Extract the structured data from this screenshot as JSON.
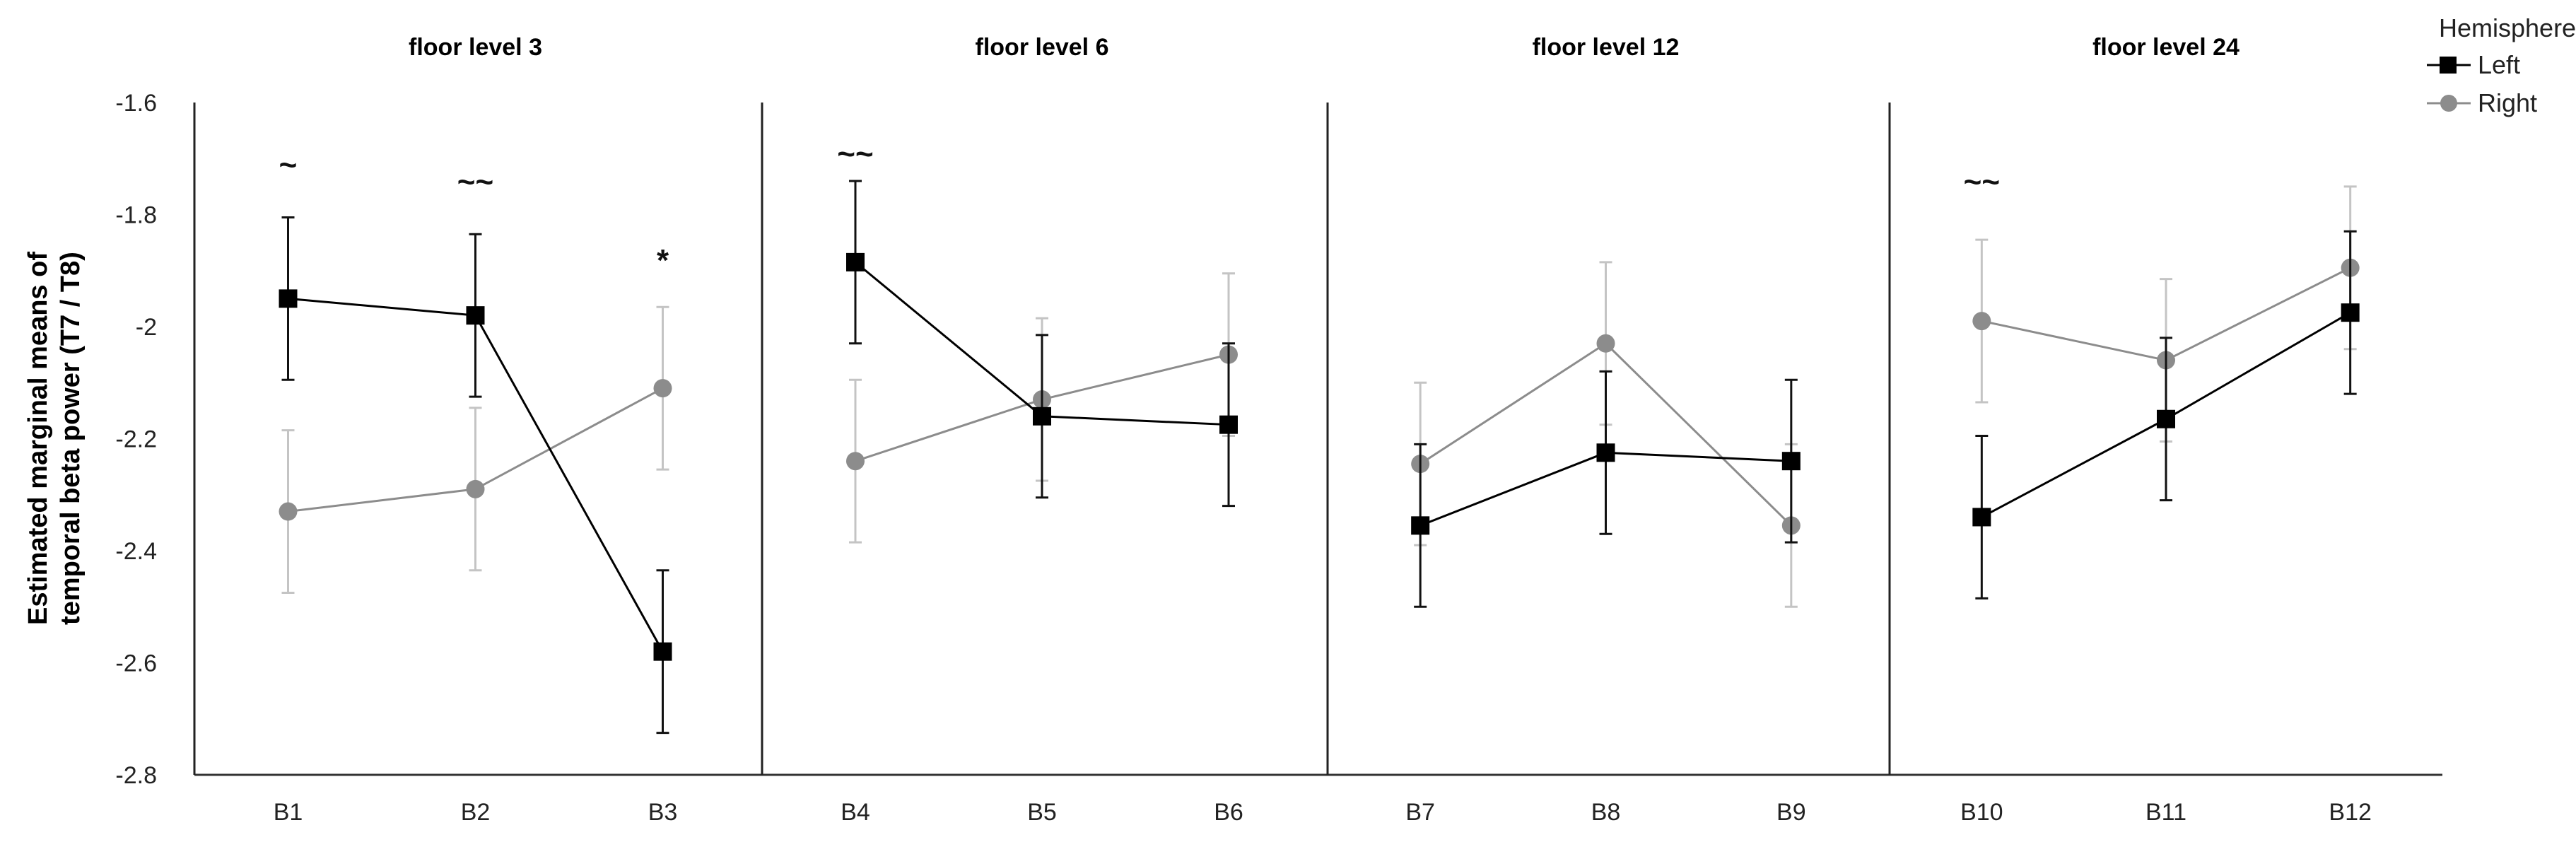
{
  "chart_data": {
    "type": "line",
    "ylabel_lines": [
      "Estimated marginal means of",
      "temporal beta power (T7 / T8)"
    ],
    "ylim": [
      -2.8,
      -1.6
    ],
    "yticks": [
      -1.6,
      -1.8,
      -2,
      -2.2,
      -2.4,
      -2.6,
      -2.8
    ],
    "ytick_labels": [
      "-1.6",
      "-1.8",
      "-2",
      "-2.2",
      "-2.4",
      "-2.6",
      "-2.8"
    ],
    "legend": {
      "title": "Hemisphere",
      "position": "top-right",
      "entries": [
        {
          "name": "Left",
          "marker": "square",
          "color": "#000000"
        },
        {
          "name": "Right",
          "marker": "circle",
          "color": "#8c8c8c"
        }
      ]
    },
    "panels": [
      {
        "title": "floor level 3",
        "categories": [
          "B1",
          "B2",
          "B3"
        ],
        "series": [
          {
            "name": "Left",
            "values": [
              -1.95,
              -1.98,
              -2.58
            ],
            "errors": [
              0.145,
              0.145,
              0.145
            ]
          },
          {
            "name": "Right",
            "values": [
              -2.33,
              -2.29,
              -2.11
            ],
            "errors": [
              0.145,
              0.145,
              0.145
            ]
          }
        ],
        "annotations": [
          {
            "category": "B1",
            "text": "~",
            "value": -1.71
          },
          {
            "category": "B2",
            "text": "~~",
            "value": -1.74
          },
          {
            "category": "B3",
            "text": "*",
            "value": -1.88
          }
        ]
      },
      {
        "title": "floor level 6",
        "categories": [
          "B4",
          "B5",
          "B6"
        ],
        "series": [
          {
            "name": "Left",
            "values": [
              -1.885,
              -2.16,
              -2.175
            ],
            "errors": [
              0.145,
              0.145,
              0.145
            ]
          },
          {
            "name": "Right",
            "values": [
              -2.24,
              -2.13,
              -2.05
            ],
            "errors": [
              0.145,
              0.145,
              0.145
            ]
          }
        ],
        "annotations": [
          {
            "category": "B4",
            "text": "~~",
            "value": -1.69
          }
        ]
      },
      {
        "title": "floor level 12",
        "categories": [
          "B7",
          "B8",
          "B9"
        ],
        "series": [
          {
            "name": "Left",
            "values": [
              -2.355,
              -2.225,
              -2.24
            ],
            "errors": [
              0.145,
              0.145,
              0.145
            ]
          },
          {
            "name": "Right",
            "values": [
              -2.245,
              -2.03,
              -2.355
            ],
            "errors": [
              0.145,
              0.145,
              0.145
            ]
          }
        ],
        "annotations": []
      },
      {
        "title": "floor level 24",
        "categories": [
          "B10",
          "B11",
          "B12"
        ],
        "series": [
          {
            "name": "Left",
            "values": [
              -2.34,
              -2.165,
              -1.975
            ],
            "errors": [
              0.145,
              0.145,
              0.145
            ]
          },
          {
            "name": "Right",
            "values": [
              -1.99,
              -2.06,
              -1.895
            ],
            "errors": [
              0.145,
              0.145,
              0.145
            ]
          }
        ],
        "annotations": [
          {
            "category": "B10",
            "text": "~~",
            "value": -1.74
          }
        ]
      }
    ]
  }
}
